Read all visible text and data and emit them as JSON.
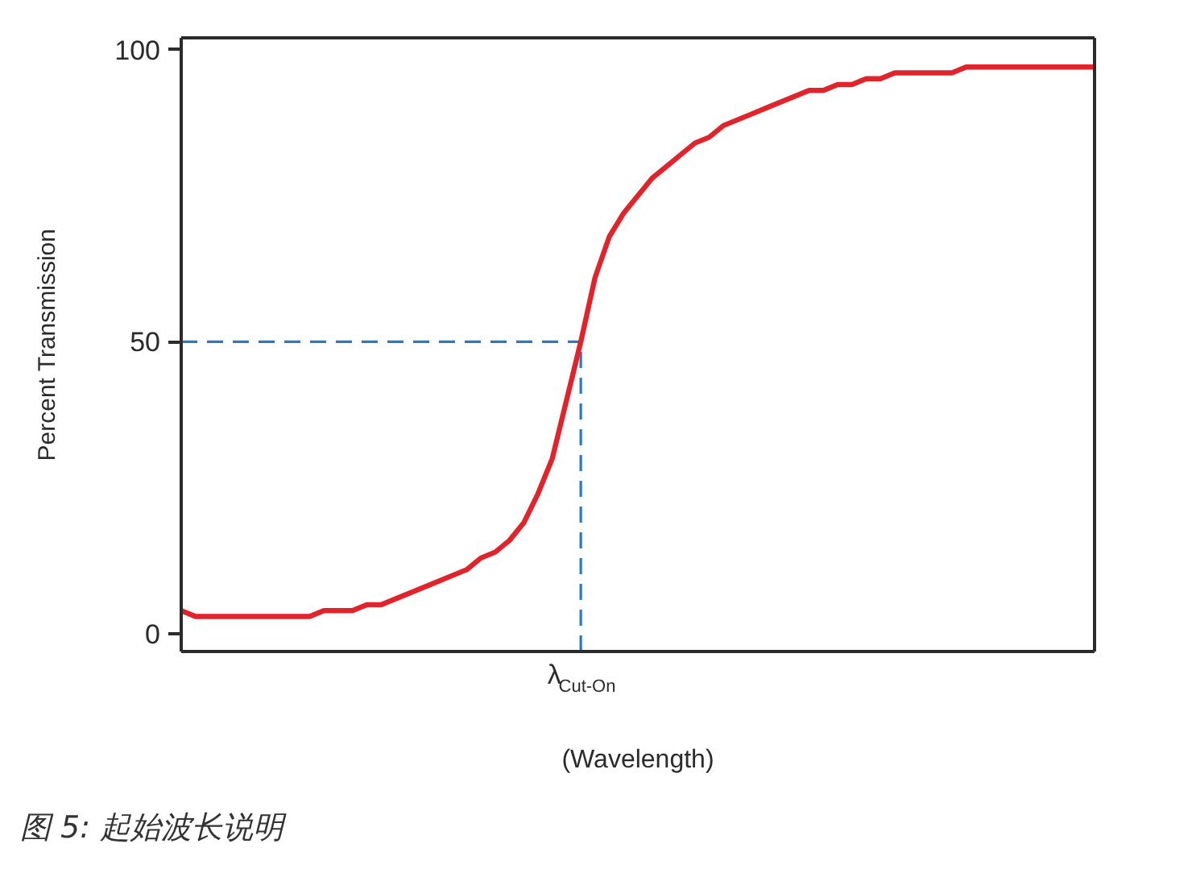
{
  "chart_data": {
    "type": "line",
    "xlabel": "(Wavelength)",
    "ylabel": "Percent Transmission",
    "annotations": [
      "图 5: 起始波长说明"
    ],
    "categories": [
      null,
      null,
      null,
      null,
      null,
      null,
      null,
      null,
      null,
      null,
      null,
      null,
      null,
      null,
      null,
      null,
      null,
      null,
      null,
      null,
      null,
      null,
      null,
      null,
      null,
      null,
      null,
      null,
      "λ$_{Cut-On}$",
      null,
      null,
      null,
      null,
      null,
      null,
      null,
      null,
      null,
      null,
      null,
      null,
      null,
      null,
      null,
      null,
      null,
      null,
      null,
      null,
      null,
      null,
      null,
      null,
      null,
      null,
      null,
      null,
      null,
      null,
      null,
      null,
      null,
      null,
      null,
      null
    ],
    "series": [
      {
        "color": "#e1242b",
        "values": [
          4,
          3,
          3,
          3,
          3,
          3,
          3,
          3,
          3,
          3,
          4,
          4,
          4,
          5,
          5,
          6,
          7,
          8,
          9,
          10,
          11,
          13,
          14,
          16,
          19,
          24,
          30,
          40,
          50,
          61,
          68,
          72,
          75,
          78,
          80,
          82,
          84,
          85,
          87,
          88,
          89,
          90,
          91,
          92,
          93,
          93,
          94,
          94,
          95,
          95,
          96,
          96,
          96,
          96,
          96,
          97,
          97,
          97,
          97,
          97,
          97,
          97,
          97,
          97,
          97
        ]
      }
    ],
    "ylim": [
      -3,
      102
    ],
    "yticks": [
      0,
      50,
      100
    ],
    "ref_lines": [
      {
        "axis": "y",
        "value": 50,
        "color": "#2a7bbd",
        "line_style": "dashed"
      },
      {
        "axis": "x",
        "value": "λ$_{Cut-On}$",
        "color": "#2a7bbd",
        "line_style": "dashed"
      }
    ]
  }
}
